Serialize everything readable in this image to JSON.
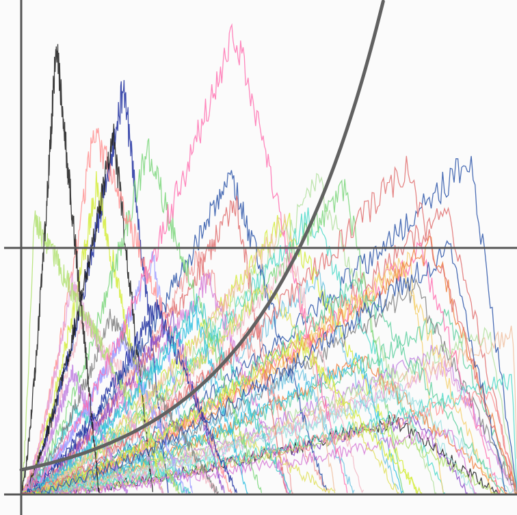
{
  "chart_data": {
    "type": "line",
    "title": "",
    "xlabel": "",
    "ylabel": "",
    "xlim": [
      0,
      1
    ],
    "ylim": [
      0,
      1
    ],
    "grid": false,
    "legend": "none",
    "reference_lines": [
      {
        "orientation": "horizontal",
        "value": 0.0,
        "color": "#555555"
      },
      {
        "orientation": "horizontal",
        "value": 0.5,
        "color": "#555555"
      },
      {
        "orientation": "vertical",
        "value": 0.0,
        "color": "#555555"
      }
    ],
    "curve": {
      "formula": "exponential",
      "color": "#616161",
      "x": [
        0.0,
        0.1,
        0.2,
        0.3,
        0.4,
        0.5,
        0.55,
        0.6,
        0.65,
        0.7,
        0.73
      ],
      "y": [
        0.05,
        0.08,
        0.12,
        0.19,
        0.29,
        0.44,
        0.55,
        0.67,
        0.81,
        0.95,
        1.0
      ]
    },
    "random_walks": {
      "count": 60,
      "peak_x_range": [
        0.0,
        1.0
      ],
      "y_max": 0.95,
      "colors": [
        "#d4ec3b",
        "#2a54a8",
        "#1a1a1a",
        "#e07070",
        "#b3e0a0",
        "#ef9a9a",
        "#9fe0e0",
        "#8c4fc9",
        "#4fd9c9",
        "#f2b8c6",
        "#f4d06f",
        "#6fc3e0",
        "#d67ad6",
        "#7ad67a",
        "#e0e060",
        "#f08040",
        "#c080e0",
        "#60d0a0",
        "#a0a0ff",
        "#ff9090",
        "#808080",
        "#41c9c9",
        "#e4a0d8",
        "#b0e070",
        "#f0c0a0",
        "#2030a0",
        "#30c0e0",
        "#ff70b0"
      ]
    }
  }
}
